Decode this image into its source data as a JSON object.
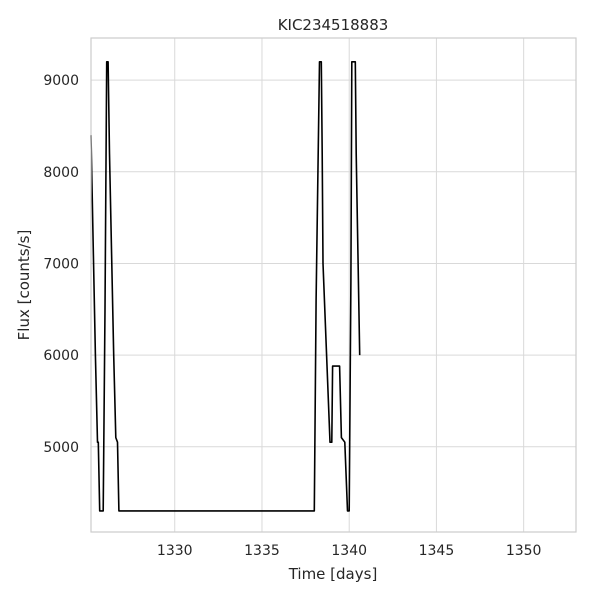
{
  "chart_data": {
    "type": "line",
    "title": "KIC234518883",
    "xlabel": "Time [days]",
    "ylabel": "Flux [counts/s]",
    "xlim": [
      1325.2,
      1353.0
    ],
    "ylim": [
      4070,
      9460
    ],
    "xticks": [
      1330,
      1335,
      1340,
      1345,
      1350
    ],
    "yticks": [
      5000,
      6000,
      7000,
      8000,
      9000
    ],
    "grid": true,
    "line_color": "#000000",
    "series": [
      {
        "x": [
          1325.2,
          1325.45,
          1325.57,
          1325.62,
          1325.7,
          1325.9,
          1326.0,
          1326.1,
          1326.18,
          1326.26,
          1326.5,
          1326.62,
          1326.72,
          1326.8,
          1327.0,
          1338.0,
          1338.1,
          1338.3,
          1338.4,
          1338.45,
          1338.5,
          1338.9,
          1339.0,
          1339.05,
          1339.45,
          1339.55,
          1339.75,
          1339.9,
          1340.0,
          1340.1,
          1340.15,
          1340.35,
          1340.4,
          1340.6
        ],
        "y": [
          8400,
          6000,
          5050,
          5050,
          4300,
          4300,
          6500,
          9200,
          9200,
          8200,
          6000,
          5100,
          5050,
          4300,
          4300,
          4300,
          6600,
          9200,
          9200,
          8200,
          7000,
          5050,
          5050,
          5880,
          5880,
          5100,
          5050,
          4300,
          4300,
          6800,
          9200,
          9200,
          8200,
          6000
        ]
      }
    ]
  }
}
